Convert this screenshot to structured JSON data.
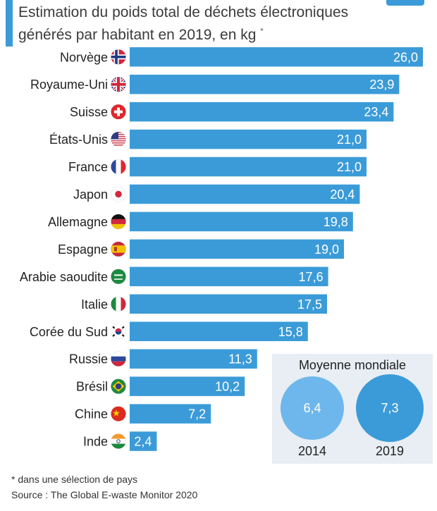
{
  "header": {
    "title_line1": "Estimation du poids total de déchets électroniques",
    "title_line2": "générés par habitant en 2019, en kg",
    "title_marker": "*"
  },
  "chart_data": {
    "type": "bar",
    "orientation": "horizontal",
    "categories": [
      "Norvège",
      "Royaume-Uni",
      "Suisse",
      "États-Unis",
      "France",
      "Japon",
      "Allemagne",
      "Espagne",
      "Arabie saoudite",
      "Italie",
      "Corée du Sud",
      "Russie",
      "Brésil",
      "Chine",
      "Inde"
    ],
    "values": [
      26.0,
      23.9,
      23.4,
      21.0,
      21.0,
      20.4,
      19.8,
      19.0,
      17.6,
      17.5,
      15.8,
      11.3,
      10.2,
      7.2,
      2.4
    ],
    "value_labels": [
      "26,0",
      "23,9",
      "23,4",
      "21,0",
      "21,0",
      "20,4",
      "19,8",
      "19,0",
      "17,6",
      "17,5",
      "15,8",
      "11,3",
      "10,2",
      "7,2",
      "2,4"
    ],
    "flags": [
      "norway-flag-icon",
      "uk-flag-icon",
      "switzerland-flag-icon",
      "usa-flag-icon",
      "france-flag-icon",
      "japan-flag-icon",
      "germany-flag-icon",
      "spain-flag-icon",
      "saudi-arabia-flag-icon",
      "italy-flag-icon",
      "south-korea-flag-icon",
      "russia-flag-icon",
      "brazil-flag-icon",
      "china-flag-icon",
      "india-flag-icon"
    ],
    "bar_color": "#3b9bd8",
    "xlim": [
      0,
      26
    ],
    "grid": false,
    "world_average": {
      "title": "Moyenne mondiale",
      "items": [
        {
          "year": "2014",
          "value": 6.4,
          "label": "6,4",
          "color": "#6eb7ec"
        },
        {
          "year": "2019",
          "value": 7.3,
          "label": "7,3",
          "color": "#3b9bd8"
        }
      ]
    }
  },
  "footer": {
    "footnote": "* dans une sélection de pays",
    "source": "Source : The Global E-waste Monitor 2020"
  },
  "colors": {
    "accent": "#3b9bd8",
    "panel_bg": "#e8eef4"
  }
}
